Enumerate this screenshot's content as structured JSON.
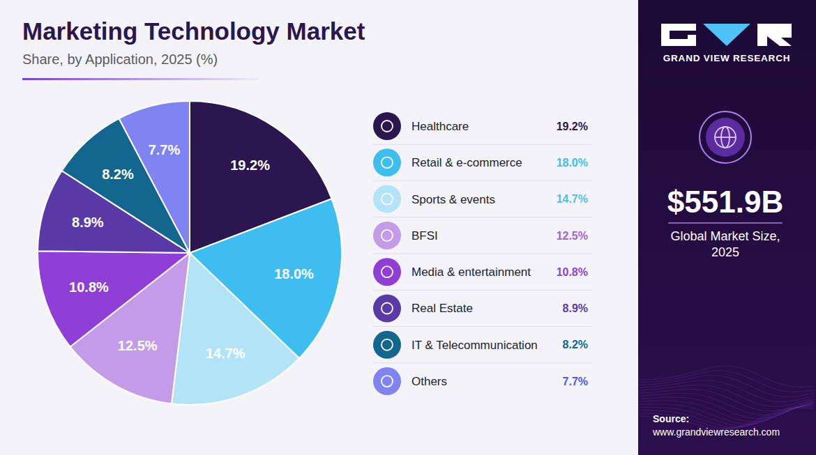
{
  "chart_data": {
    "type": "pie",
    "title": "Marketing Technology Market",
    "subtitle": "Share, by Application, 2025 (%)",
    "categories": [
      "Healthcare",
      "Retail & e-commerce",
      "Sports & events",
      "BFSI",
      "Media & entertainment",
      "Real Estate",
      "IT & Telecommunication",
      "Others"
    ],
    "values": [
      19.2,
      18.0,
      14.7,
      12.5,
      10.8,
      8.9,
      8.2,
      7.7
    ],
    "value_labels": [
      "19.2%",
      "18.0%",
      "14.7%",
      "12.5%",
      "10.8%",
      "8.9%",
      "8.2%",
      "7.7%"
    ],
    "colors": [
      "#2b1650",
      "#3dbdf0",
      "#b3e3f7",
      "#c49be8",
      "#8f3fd6",
      "#5a3aa6",
      "#13668e",
      "#7f84f2"
    ],
    "data_labels": true,
    "legend": "right",
    "annotations": {
      "brand": "GRAND VIEW RESEARCH",
      "market_size": "$551.9B",
      "market_size_caption": "Global Market Size, 2025",
      "source_label": "Source:",
      "source": "www.grandviewresearch.com"
    }
  }
}
